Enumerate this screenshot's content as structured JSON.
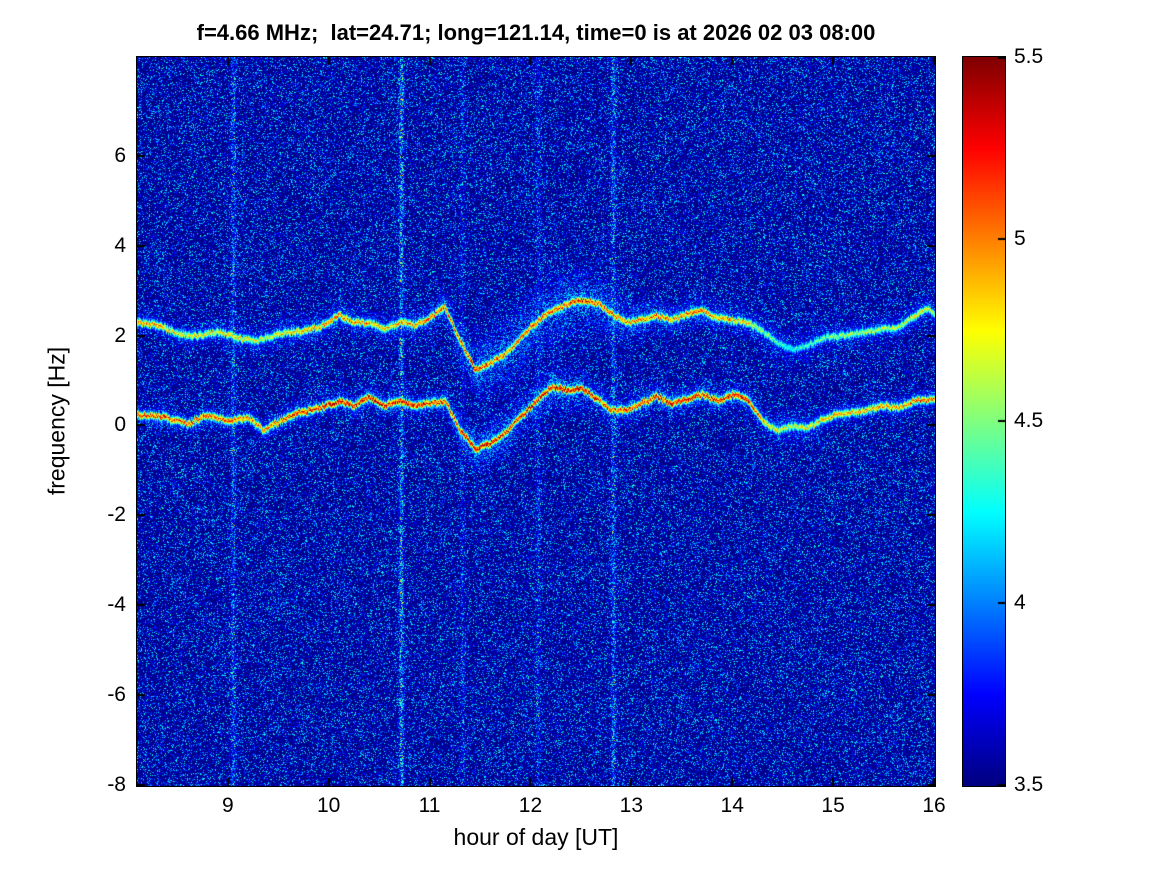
{
  "chart_data": {
    "type": "heatmap",
    "title": "f=4.66 MHz;  lat=24.71; long=121.14, time=0 is at 2026 02 03 08:00",
    "xlabel": "hour of day [UT]",
    "ylabel": "frequency [Hz]",
    "xlim": [
      8.1,
      16
    ],
    "ylim": [
      -8,
      8.2
    ],
    "xticks": [
      9,
      10,
      11,
      12,
      13,
      14,
      15,
      16
    ],
    "yticks": [
      -8,
      -6,
      -4,
      -2,
      0,
      2,
      4,
      6
    ],
    "colormap": "jet",
    "grid": false,
    "colorbar": {
      "min": 3.5,
      "max": 5.5,
      "ticks": [
        3.5,
        4,
        4.5,
        5,
        5.5
      ],
      "position": "right"
    },
    "noise": {
      "base": 3.5,
      "amp": 0.85,
      "exp": 4.5
    },
    "vertical_stripes": [
      {
        "hour": 9.05,
        "intensity": 0.55
      },
      {
        "hour": 10.72,
        "intensity": 0.85
      },
      {
        "hour": 11.32,
        "intensity": 0.3
      },
      {
        "hour": 12.07,
        "intensity": 0.35
      },
      {
        "hour": 12.82,
        "intensity": 0.6
      }
    ],
    "traces": [
      {
        "name": "primary-doppler-trace",
        "points_format": [
          "hour",
          "freq_hz",
          "intensity",
          "spread_hz"
        ],
        "points": [
          [
            8.1,
            0.25,
            0.85,
            0.15
          ],
          [
            8.35,
            0.2,
            0.9,
            0.15
          ],
          [
            8.6,
            0.05,
            0.85,
            0.15
          ],
          [
            8.8,
            0.25,
            0.9,
            0.15
          ],
          [
            9.0,
            0.1,
            0.9,
            0.15
          ],
          [
            9.2,
            0.2,
            0.85,
            0.15
          ],
          [
            9.35,
            -0.1,
            0.8,
            0.15
          ],
          [
            9.5,
            0.1,
            0.9,
            0.15
          ],
          [
            9.7,
            0.3,
            0.95,
            0.15
          ],
          [
            9.9,
            0.4,
            0.95,
            0.15
          ],
          [
            10.1,
            0.55,
            1.0,
            0.15
          ],
          [
            10.25,
            0.45,
            1.0,
            0.15
          ],
          [
            10.4,
            0.65,
            1.0,
            0.18
          ],
          [
            10.55,
            0.45,
            0.95,
            0.18
          ],
          [
            10.7,
            0.55,
            1.0,
            0.18
          ],
          [
            10.85,
            0.45,
            0.95,
            0.15
          ],
          [
            11.0,
            0.5,
            0.95,
            0.15
          ],
          [
            11.15,
            0.55,
            0.9,
            0.2
          ],
          [
            11.3,
            -0.1,
            0.95,
            0.25
          ],
          [
            11.45,
            -0.5,
            1.0,
            0.3
          ],
          [
            11.6,
            -0.4,
            1.0,
            0.3
          ],
          [
            11.75,
            -0.15,
            0.95,
            0.3
          ],
          [
            11.9,
            0.2,
            0.95,
            0.3
          ],
          [
            12.05,
            0.55,
            1.0,
            0.3
          ],
          [
            12.2,
            0.85,
            1.0,
            0.3
          ],
          [
            12.35,
            0.8,
            1.0,
            0.3
          ],
          [
            12.5,
            0.85,
            1.0,
            0.25
          ],
          [
            12.65,
            0.6,
            0.95,
            0.2
          ],
          [
            12.8,
            0.35,
            0.9,
            0.2
          ],
          [
            12.95,
            0.35,
            0.9,
            0.2
          ],
          [
            13.1,
            0.5,
            0.95,
            0.2
          ],
          [
            13.25,
            0.65,
            0.95,
            0.2
          ],
          [
            13.4,
            0.5,
            0.95,
            0.18
          ],
          [
            13.55,
            0.6,
            1.0,
            0.18
          ],
          [
            13.7,
            0.7,
            0.95,
            0.18
          ],
          [
            13.85,
            0.55,
            0.95,
            0.18
          ],
          [
            14.0,
            0.7,
            1.0,
            0.18
          ],
          [
            14.15,
            0.6,
            0.95,
            0.18
          ],
          [
            14.3,
            0.1,
            0.8,
            0.2
          ],
          [
            14.45,
            -0.1,
            0.7,
            0.25
          ],
          [
            14.6,
            0.0,
            0.65,
            0.25
          ],
          [
            14.75,
            -0.05,
            0.7,
            0.2
          ],
          [
            14.9,
            0.15,
            0.75,
            0.18
          ],
          [
            15.05,
            0.25,
            0.8,
            0.15
          ],
          [
            15.2,
            0.3,
            0.75,
            0.15
          ],
          [
            15.35,
            0.35,
            0.8,
            0.15
          ],
          [
            15.5,
            0.45,
            0.8,
            0.15
          ],
          [
            15.65,
            0.4,
            0.8,
            0.15
          ],
          [
            15.8,
            0.55,
            0.85,
            0.15
          ],
          [
            16.0,
            0.6,
            0.85,
            0.15
          ]
        ]
      },
      {
        "name": "secondary-doppler-trace",
        "points_format": [
          "hour",
          "freq_hz",
          "intensity",
          "spread_hz"
        ],
        "points": [
          [
            8.1,
            2.3,
            0.8,
            0.15
          ],
          [
            8.3,
            2.25,
            0.8,
            0.15
          ],
          [
            8.5,
            2.05,
            0.7,
            0.18
          ],
          [
            8.7,
            2.0,
            0.7,
            0.18
          ],
          [
            8.9,
            2.1,
            0.7,
            0.18
          ],
          [
            9.1,
            1.95,
            0.7,
            0.2
          ],
          [
            9.3,
            1.9,
            0.65,
            0.2
          ],
          [
            9.5,
            2.05,
            0.7,
            0.2
          ],
          [
            9.7,
            2.1,
            0.75,
            0.2
          ],
          [
            9.9,
            2.2,
            0.8,
            0.2
          ],
          [
            10.1,
            2.45,
            0.85,
            0.2
          ],
          [
            10.25,
            2.3,
            0.8,
            0.2
          ],
          [
            10.4,
            2.3,
            0.8,
            0.2
          ],
          [
            10.55,
            2.15,
            0.75,
            0.2
          ],
          [
            10.7,
            2.3,
            0.8,
            0.2
          ],
          [
            10.85,
            2.25,
            0.8,
            0.2
          ],
          [
            11.0,
            2.4,
            0.85,
            0.2
          ],
          [
            11.15,
            2.65,
            0.9,
            0.25
          ],
          [
            11.3,
            1.9,
            0.9,
            0.35
          ],
          [
            11.45,
            1.25,
            0.95,
            0.4
          ],
          [
            11.6,
            1.4,
            0.9,
            0.45
          ],
          [
            11.75,
            1.6,
            0.85,
            0.5
          ],
          [
            11.9,
            1.95,
            0.85,
            0.5
          ],
          [
            12.05,
            2.3,
            0.85,
            0.5
          ],
          [
            12.2,
            2.55,
            0.9,
            0.5
          ],
          [
            12.35,
            2.7,
            0.9,
            0.5
          ],
          [
            12.5,
            2.8,
            0.95,
            0.45
          ],
          [
            12.65,
            2.75,
            0.9,
            0.4
          ],
          [
            12.8,
            2.5,
            0.85,
            0.35
          ],
          [
            12.95,
            2.3,
            0.8,
            0.3
          ],
          [
            13.1,
            2.35,
            0.85,
            0.25
          ],
          [
            13.25,
            2.45,
            0.85,
            0.25
          ],
          [
            13.4,
            2.35,
            0.8,
            0.22
          ],
          [
            13.55,
            2.5,
            0.85,
            0.22
          ],
          [
            13.7,
            2.55,
            0.85,
            0.22
          ],
          [
            13.85,
            2.4,
            0.8,
            0.22
          ],
          [
            14.0,
            2.35,
            0.8,
            0.2
          ],
          [
            14.15,
            2.3,
            0.75,
            0.2
          ],
          [
            14.3,
            2.1,
            0.6,
            0.25
          ],
          [
            14.45,
            1.85,
            0.5,
            0.3
          ],
          [
            14.6,
            1.7,
            0.45,
            0.3
          ],
          [
            14.75,
            1.8,
            0.5,
            0.3
          ],
          [
            14.9,
            1.95,
            0.55,
            0.25
          ],
          [
            15.05,
            2.0,
            0.6,
            0.2
          ],
          [
            15.2,
            2.05,
            0.6,
            0.2
          ],
          [
            15.35,
            2.1,
            0.6,
            0.2
          ],
          [
            15.5,
            2.15,
            0.65,
            0.2
          ],
          [
            15.65,
            2.2,
            0.6,
            0.2
          ],
          [
            15.8,
            2.45,
            0.7,
            0.2
          ],
          [
            15.95,
            2.6,
            0.65,
            0.2
          ],
          [
            16.0,
            2.5,
            0.6,
            0.2
          ]
        ]
      }
    ]
  }
}
